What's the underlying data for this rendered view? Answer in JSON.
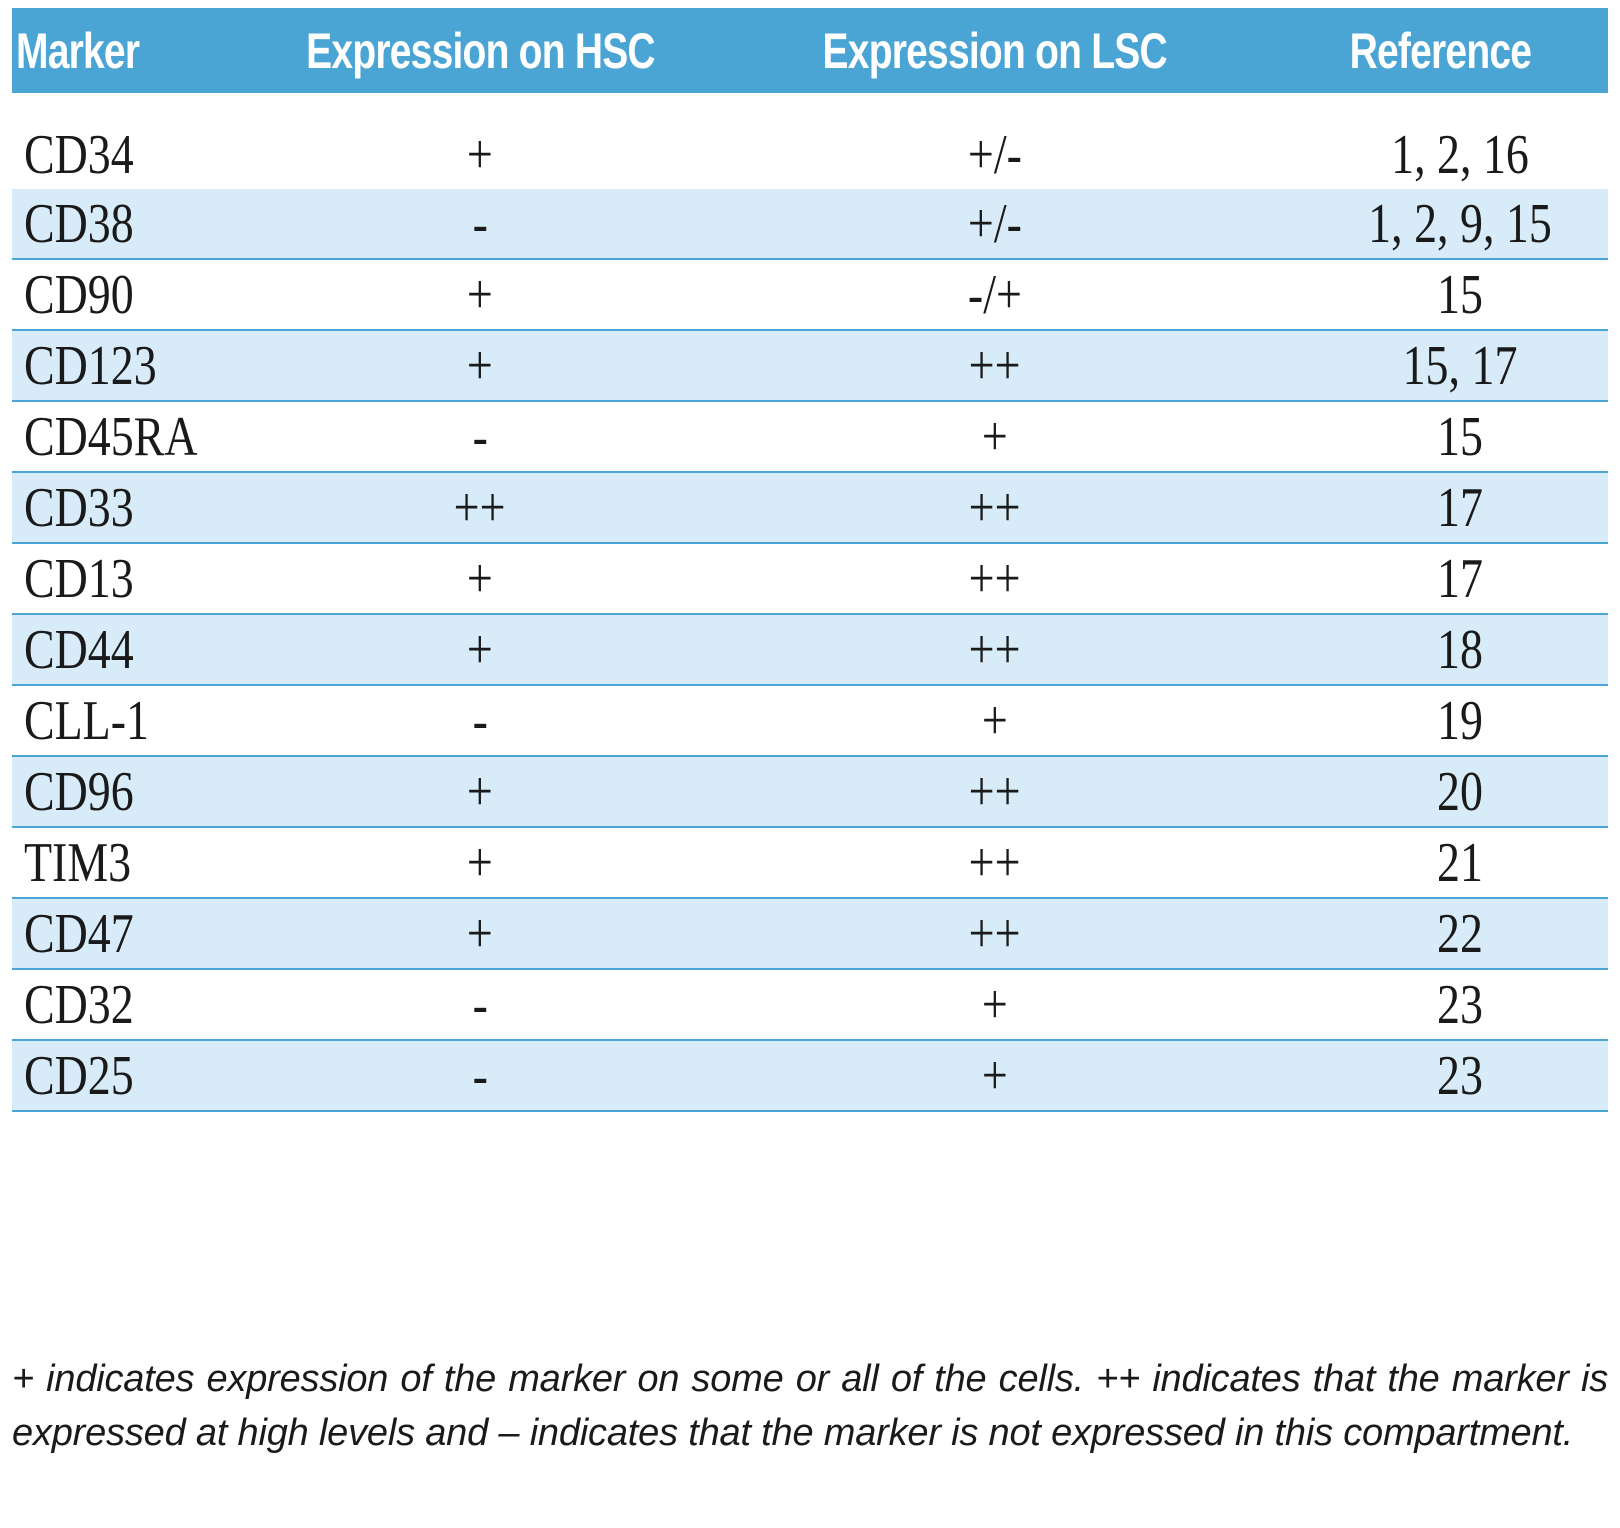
{
  "table": {
    "headers": {
      "marker": "Marker",
      "hsc": "Expression on HSC",
      "lsc": "Expression on LSC",
      "reference": "Reference"
    },
    "rows": [
      {
        "marker": "CD34",
        "hsc": "+",
        "lsc": "+/-",
        "reference": "1, 2, 16"
      },
      {
        "marker": "CD38",
        "hsc": "-",
        "lsc": "+/-",
        "reference": "1, 2, 9, 15"
      },
      {
        "marker": "CD90",
        "hsc": "+",
        "lsc": "-/+",
        "reference": "15"
      },
      {
        "marker": "CD123",
        "hsc": "+",
        "lsc": "++",
        "reference": "15, 17"
      },
      {
        "marker": "CD45RA",
        "hsc": "-",
        "lsc": "+",
        "reference": "15"
      },
      {
        "marker": "CD33",
        "hsc": "++",
        "lsc": "++",
        "reference": "17"
      },
      {
        "marker": "CD13",
        "hsc": "+",
        "lsc": "++",
        "reference": "17"
      },
      {
        "marker": "CD44",
        "hsc": "+",
        "lsc": "++",
        "reference": "18"
      },
      {
        "marker": "CLL-1",
        "hsc": "-",
        "lsc": "+",
        "reference": "19"
      },
      {
        "marker": "CD96",
        "hsc": "+",
        "lsc": "++",
        "reference": "20"
      },
      {
        "marker": "TIM3",
        "hsc": "+",
        "lsc": "++",
        "reference": "21"
      },
      {
        "marker": "CD47",
        "hsc": "+",
        "lsc": "++",
        "reference": "22"
      },
      {
        "marker": "CD32",
        "hsc": "-",
        "lsc": "+",
        "reference": "23"
      },
      {
        "marker": "CD25",
        "hsc": "-",
        "lsc": "+",
        "reference": "23"
      }
    ]
  },
  "footnote": "+ indicates expression of the marker on some or all of the cells. ++ indicates that the marker is expressed at high levels and – indicates that the marker is not expressed in this compartment.",
  "colors": {
    "header_bg": "#4aa5d5",
    "shaded_row_bg": "#d7ebf8",
    "rule": "#4aa5d5"
  }
}
